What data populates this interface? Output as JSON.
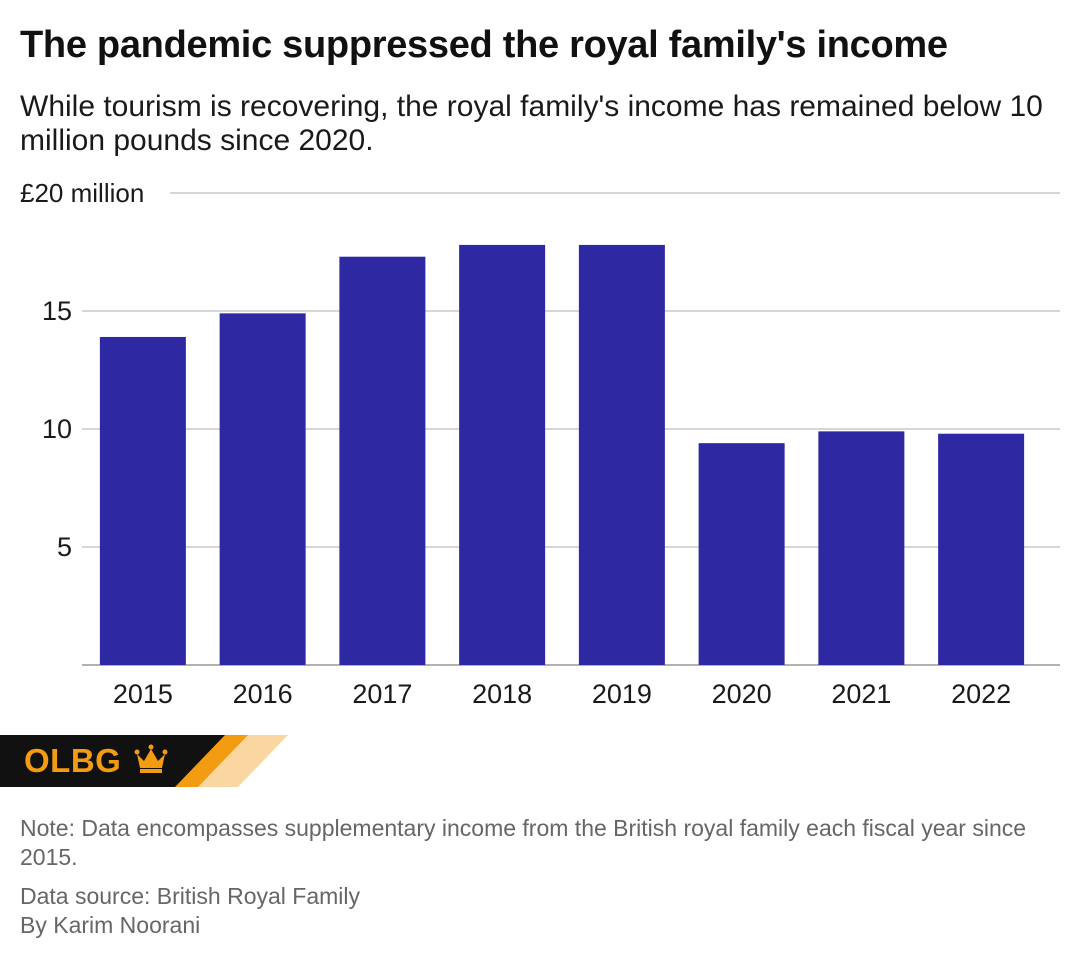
{
  "header": {
    "title": "The pandemic suppressed the royal family's income",
    "subtitle": "While tourism is recovering, the royal family's income has remained below 10 million pounds since 2020."
  },
  "chart_data": {
    "type": "bar",
    "categories": [
      "2015",
      "2016",
      "2017",
      "2018",
      "2019",
      "2020",
      "2021",
      "2022"
    ],
    "values": [
      13.9,
      14.9,
      17.3,
      17.8,
      17.8,
      9.4,
      9.9,
      9.8
    ],
    "ylim": [
      0,
      20
    ],
    "yticks": [
      5,
      10,
      15,
      20
    ],
    "ytick_labels": [
      "5",
      "10",
      "15",
      "£20 million"
    ],
    "grid": true,
    "bar_color": "#2e28a3",
    "xlabel": "",
    "ylabel": ""
  },
  "branding": {
    "logo_text": "OLBG",
    "logo_icon": "crown-icon",
    "colors": {
      "dark": "#111111",
      "orange": "#f39c12",
      "light_orange": "#fad7a0"
    }
  },
  "footer": {
    "note": "Note: Data encompasses supplementary income from the British royal family each fiscal year since 2015.",
    "source": "Data source: British Royal Family",
    "byline": "By Karim Noorani"
  }
}
